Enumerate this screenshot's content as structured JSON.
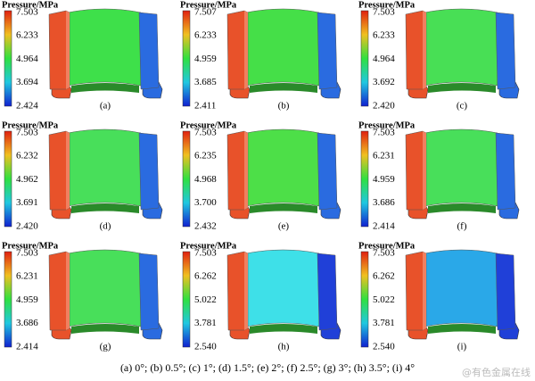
{
  "panels": [
    {
      "title": "Pressure/MPa",
      "labels": [
        "7.503",
        "6.233",
        "4.964",
        "3.694",
        "2.424"
      ],
      "caption": "(a)",
      "colors": [
        "#e8522a",
        "#3ee04a",
        "#2a6be0"
      ]
    },
    {
      "title": "Pressure/MPa",
      "labels": [
        "7.507",
        "6.233",
        "4.959",
        "3.685",
        "2.411"
      ],
      "caption": "(b)",
      "colors": [
        "#e8522a",
        "#45df48",
        "#2a6be0"
      ]
    },
    {
      "title": "Pressure/MPa",
      "labels": [
        "7.503",
        "6.233",
        "4.964",
        "3.692",
        "2.420"
      ],
      "caption": "(c)",
      "colors": [
        "#e8522a",
        "#48df55",
        "#2a6be0"
      ]
    },
    {
      "title": "Pressure/MPa",
      "labels": [
        "7.503",
        "6.232",
        "4.962",
        "3.691",
        "2.420"
      ],
      "caption": "(d)",
      "colors": [
        "#e8522a",
        "#48df5a",
        "#2a6be0"
      ]
    },
    {
      "title": "Pressure/MPa",
      "labels": [
        "7.503",
        "6.235",
        "4.968",
        "3.700",
        "2.432"
      ],
      "caption": "(e)",
      "colors": [
        "#e8522a",
        "#4ddf48",
        "#2a6be0"
      ]
    },
    {
      "title": "Pressure/MPa",
      "labels": [
        "7.503",
        "6.231",
        "4.959",
        "3.686",
        "2.414"
      ],
      "caption": "(f)",
      "colors": [
        "#e8522a",
        "#48df5a",
        "#2a6be0"
      ]
    },
    {
      "title": "Pressure/MPa",
      "labels": [
        "7.503",
        "6.231",
        "4.959",
        "3.686",
        "2.414"
      ],
      "caption": "(g)",
      "colors": [
        "#e8522a",
        "#48df5a",
        "#2a6be0"
      ]
    },
    {
      "title": "Pressure/MPa",
      "labels": [
        "7.503",
        "6.262",
        "5.022",
        "3.781",
        "2.540"
      ],
      "caption": "(h)",
      "colors": [
        "#e8522a",
        "#3ee0e8",
        "#2040d8"
      ]
    },
    {
      "title": "Pressure/MPa",
      "labels": [
        "7.503",
        "6.262",
        "5.022",
        "3.781",
        "2.540"
      ],
      "caption": "(i)",
      "colors": [
        "#e8522a",
        "#2aa8e8",
        "#2040d8"
      ]
    }
  ],
  "caption": "(a) 0°; (b) 0.5°; (c) 1°; (d) 1.5°; (e) 2°; (f) 2.5°; (g) 3°; (h) 3.5°; (i) 4°",
  "watermark": "@有色金属在线"
}
